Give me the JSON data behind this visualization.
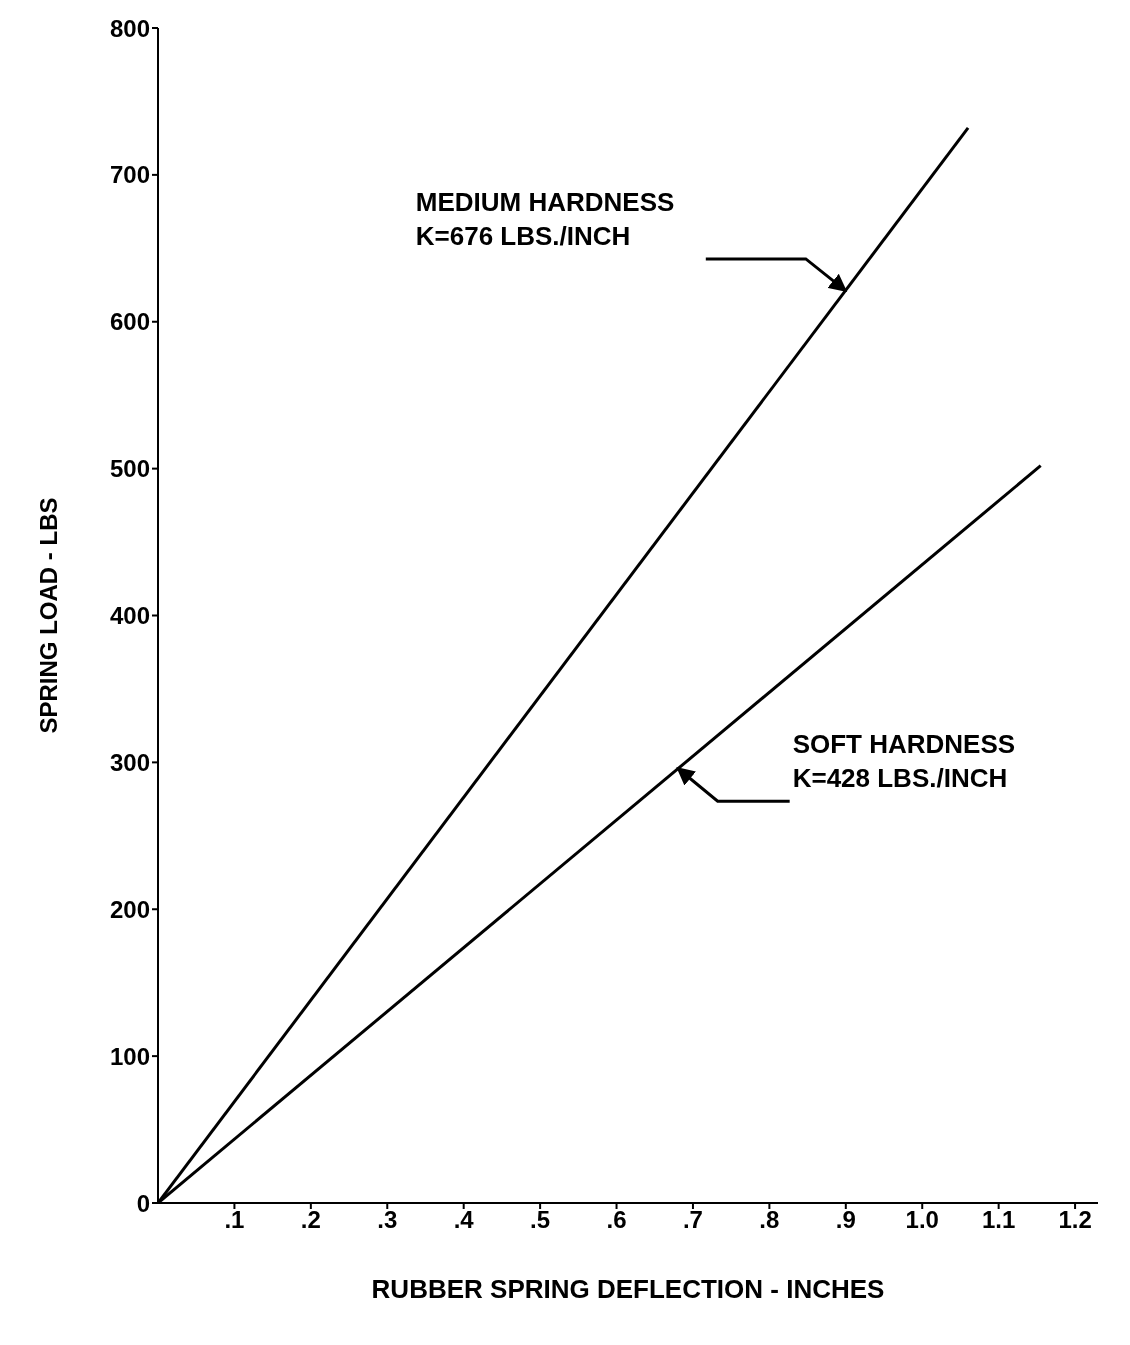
{
  "chart_data": {
    "type": "line",
    "xlabel": "RUBBER SPRING DEFLECTION - INCHES",
    "ylabel": "SPRING LOAD - LBS",
    "series": [
      {
        "color": "#000000",
        "x": [
          0,
          1.06
        ],
        "values": [
          0,
          732
        ]
      },
      {
        "color": "#000000",
        "x": [
          0,
          1.155
        ],
        "values": [
          0,
          502
        ]
      }
    ],
    "xlim": [
      0,
      1.23
    ],
    "ylim": [
      0,
      800
    ],
    "xticks": [
      {
        "value": 0.1,
        "label": ".1"
      },
      {
        "value": 0.2,
        "label": ".2"
      },
      {
        "value": 0.3,
        "label": ".3"
      },
      {
        "value": 0.4,
        "label": ".4"
      },
      {
        "value": 0.5,
        "label": ".5"
      },
      {
        "value": 0.6,
        "label": ".6"
      },
      {
        "value": 0.7,
        "label": ".7"
      },
      {
        "value": 0.8,
        "label": ".8"
      },
      {
        "value": 0.9,
        "label": ".9"
      },
      {
        "value": 1.0,
        "label": "1.0"
      },
      {
        "value": 1.1,
        "label": "1.1"
      },
      {
        "value": 1.2,
        "label": "1.2"
      }
    ],
    "yticks": [
      0,
      100,
      200,
      300,
      400,
      500,
      600,
      700,
      800
    ],
    "annotations": [
      {
        "text": "MEDIUM HARDNESS\nK=676 LBS./INCH",
        "x": 0.9,
        "y": 621
      },
      {
        "text": "SOFT HARDNESS\nK=428 LBS./INCH",
        "x": 0.68,
        "y": 296
      }
    ],
    "grid": false,
    "marker": "none",
    "line_style": "solid"
  }
}
